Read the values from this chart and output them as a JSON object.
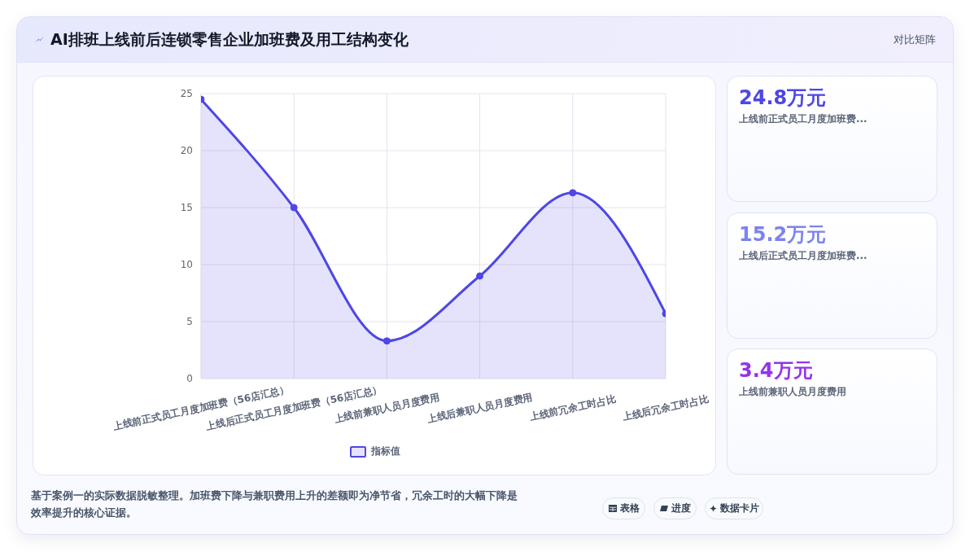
{
  "chart_data": [
    {
      "type": "area",
      "title": "AI排班上线前后连锁零售企业加班费及用工结构变化",
      "categories": [
        "上线前正式员工月度加班费（56店汇总）",
        "上线后正式员工月度加班费（56店汇总）",
        "上线前兼职人员月度费用",
        "上线后兼职人员月度费用",
        "上线前冗余工时占比",
        "上线后冗余工时占比"
      ],
      "series": [
        {
          "name": "指标值",
          "color": "#4f46e5",
          "values": [
            24.5,
            15.0,
            3.3,
            9.0,
            16.3,
            5.7
          ]
        }
      ],
      "ylim": [
        0,
        25
      ],
      "yticks": [
        0,
        5,
        10,
        15,
        20,
        25
      ],
      "grid": true,
      "legend": "bottom",
      "marker": "circle",
      "annotations": [
        "对比矩阵",
        "基于案例一的实际数据脱敏整理。加班费下降与兼职费用上升的差额即为净节省，冗余工时的大幅下降是效率提升的核心证据。",
        "表格",
        "进度",
        "数据卡片"
      ]
    },
    {
      "type": "other",
      "annotations": [
        "24.8万元",
        "上线前正式员工月度加班费...",
        "15.2万元",
        "上线后正式员工月度加班费...",
        "3.4万元",
        "上线前兼职人员月度费用"
      ],
      "colors": [
        "#4f46e5",
        "#7c83ef",
        "#9333ea"
      ]
    }
  ]
}
